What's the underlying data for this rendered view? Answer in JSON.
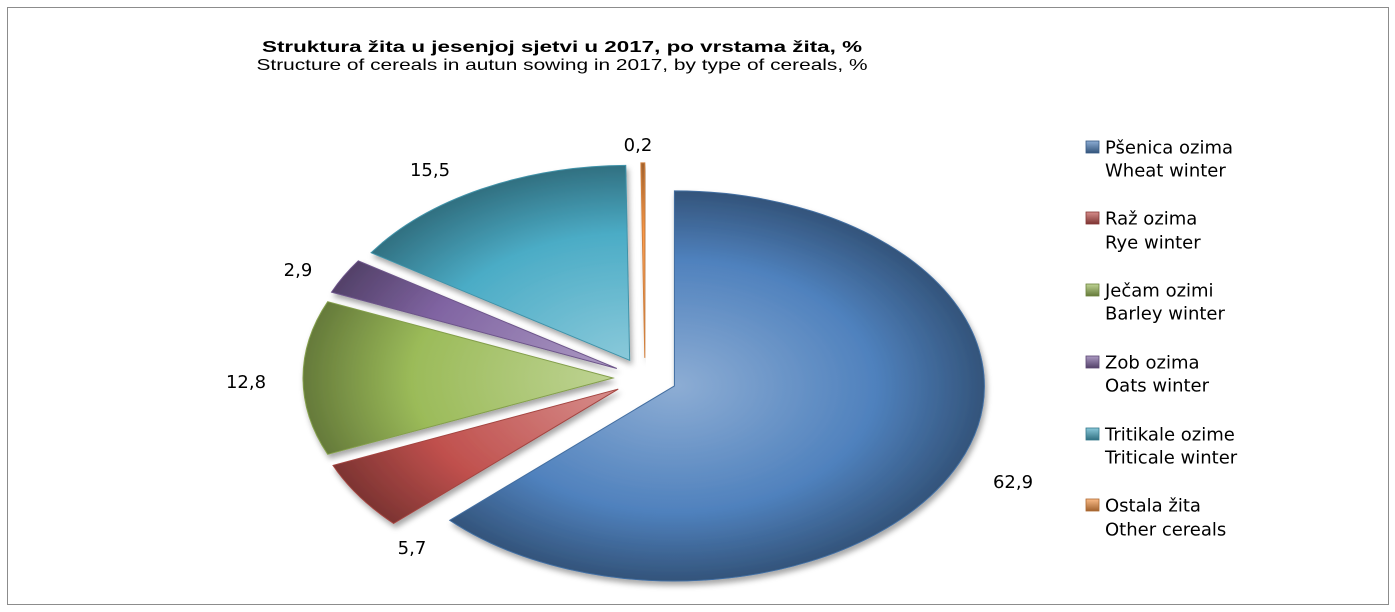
{
  "chart_data": {
    "type": "pie",
    "title": "Struktura žita u jesenjoj sjetvi u 2017, po vrstama žita, %",
    "subtitle": "Structure of cereals in autun sowing in 2017, by type of cereals, %",
    "exploded": true,
    "legend": "right",
    "slices": [
      {
        "label": "Pšenica ozima",
        "label_en": "Wheat winter",
        "value": 62.9,
        "value_label": "62,9",
        "color": "#4f81bd"
      },
      {
        "label": "Raž ozima",
        "label_en": "Rye winter",
        "value": 5.7,
        "value_label": "5,7",
        "color": "#c0504d"
      },
      {
        "label": "Ječam ozimi",
        "label_en": "Barley winter",
        "value": 12.8,
        "value_label": "12,8",
        "color": "#9bbb59"
      },
      {
        "label": "Zob ozima",
        "label_en": "Oats winter",
        "value": 2.9,
        "value_label": "2,9",
        "color": "#8064a2"
      },
      {
        "label": "Tritikale ozime",
        "label_en": "Triticale winter",
        "value": 15.5,
        "value_label": "15,5",
        "color": "#4bacc6"
      },
      {
        "label": "Ostala žita",
        "label_en": "Other cereals",
        "value": 0.2,
        "value_label": "0,2",
        "color": "#f79646"
      }
    ]
  }
}
